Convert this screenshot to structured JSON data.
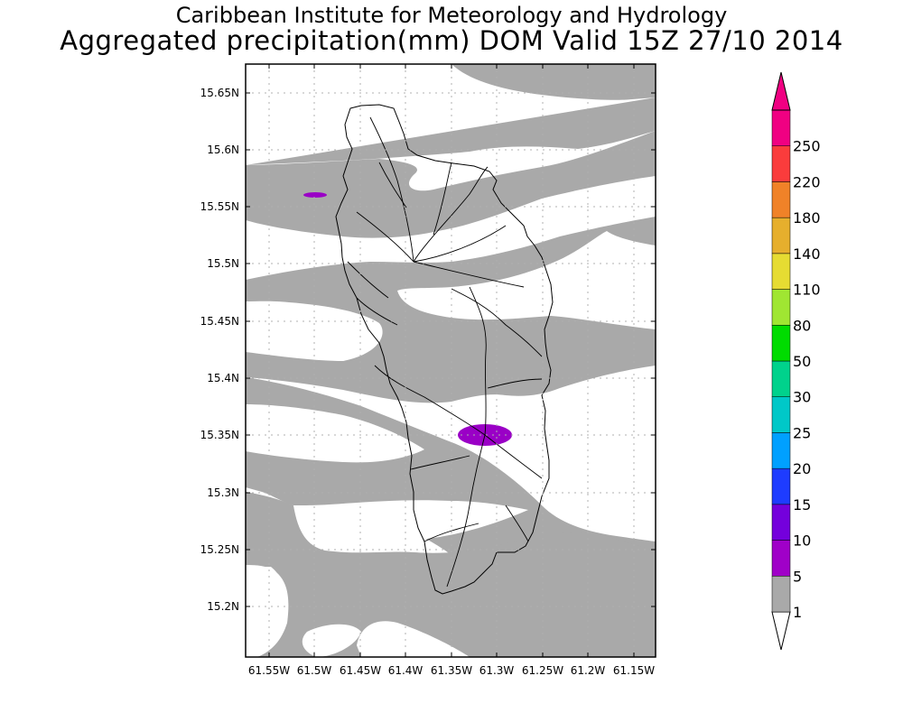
{
  "title": {
    "line1": "Caribbean Institute for Meteorology and Hydrology",
    "line2": "Aggregated precipitation(mm) DOM Valid 15Z 27/10 2014"
  },
  "map": {
    "lat_labels": [
      "15.65N",
      "15.6N",
      "15.55N",
      "15.5N",
      "15.45N",
      "15.4N",
      "15.35N",
      "15.3N",
      "15.25N",
      "15.2N"
    ],
    "lon_labels": [
      "61.55W",
      "61.5W",
      "61.45W",
      "61.4W",
      "61.35W",
      "61.3W",
      "61.25W",
      "61.2W",
      "61.15W"
    ],
    "lat_range": [
      15.155,
      15.675
    ],
    "lon_range": [
      61.585,
      61.135
    ],
    "colors": {
      "light_rain": "#a9a9a9",
      "moderate_rain": "#9a00c6",
      "land_outline": "#000000",
      "background": "#ffffff"
    }
  },
  "colorbar": {
    "levels": [
      "1",
      "5",
      "10",
      "15",
      "20",
      "25",
      "30",
      "50",
      "80",
      "110",
      "140",
      "180",
      "220",
      "250"
    ],
    "colors": [
      "#a9a9a9",
      "#a000c8",
      "#7400dc",
      "#1e3cff",
      "#00a0ff",
      "#00c8c8",
      "#00d28c",
      "#00dc00",
      "#a0e632",
      "#e6dc32",
      "#e6af2d",
      "#f08228",
      "#fa3c3c",
      "#f00082"
    ]
  }
}
